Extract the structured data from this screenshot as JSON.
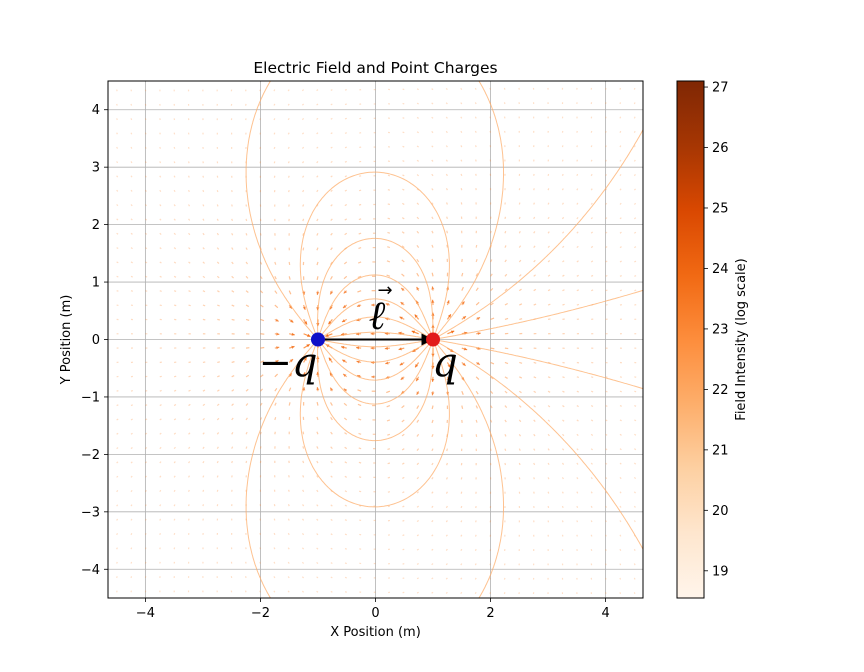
{
  "chart_data": [
    {
      "type": "vector-field",
      "title": "Electric Field and Point Charges",
      "xlabel": "X Position (m)",
      "ylabel": "Y Position (m)",
      "xlim": [
        -4.65,
        4.65
      ],
      "ylim": [
        -4.5,
        4.5
      ],
      "xticks": [
        -4,
        -2,
        0,
        2,
        4
      ],
      "yticks": [
        -4,
        -3,
        -2,
        -1,
        0,
        1,
        2,
        3,
        4
      ],
      "xtick_labels": [
        "−4",
        "−2",
        "0",
        "2",
        "4"
      ],
      "ytick_labels": [
        "−4",
        "−3",
        "−2",
        "−1",
        "0",
        "1",
        "2",
        "3",
        "4"
      ],
      "grid": true,
      "field_colormap": "Oranges",
      "charges": [
        {
          "x": -1,
          "y": 0,
          "sign": "negative",
          "color": "#1010c8",
          "label": "−q"
        },
        {
          "x": 1,
          "y": 0,
          "sign": "positive",
          "color": "#e21b1b",
          "label": "q"
        }
      ],
      "dipole_vector": {
        "from": [
          -1,
          0
        ],
        "to": [
          1,
          0
        ],
        "label": "ℓ",
        "label_arrow": "⃗"
      }
    },
    {
      "type": "colorbar",
      "label": "Field Intensity (log scale)",
      "range": [
        18.55,
        27.1
      ],
      "ticks": [
        19,
        20,
        21,
        22,
        23,
        24,
        25,
        26,
        27
      ],
      "tick_labels": [
        "19",
        "20",
        "21",
        "22",
        "23",
        "24",
        "25",
        "26",
        "27"
      ],
      "colormap": "Oranges"
    }
  ]
}
